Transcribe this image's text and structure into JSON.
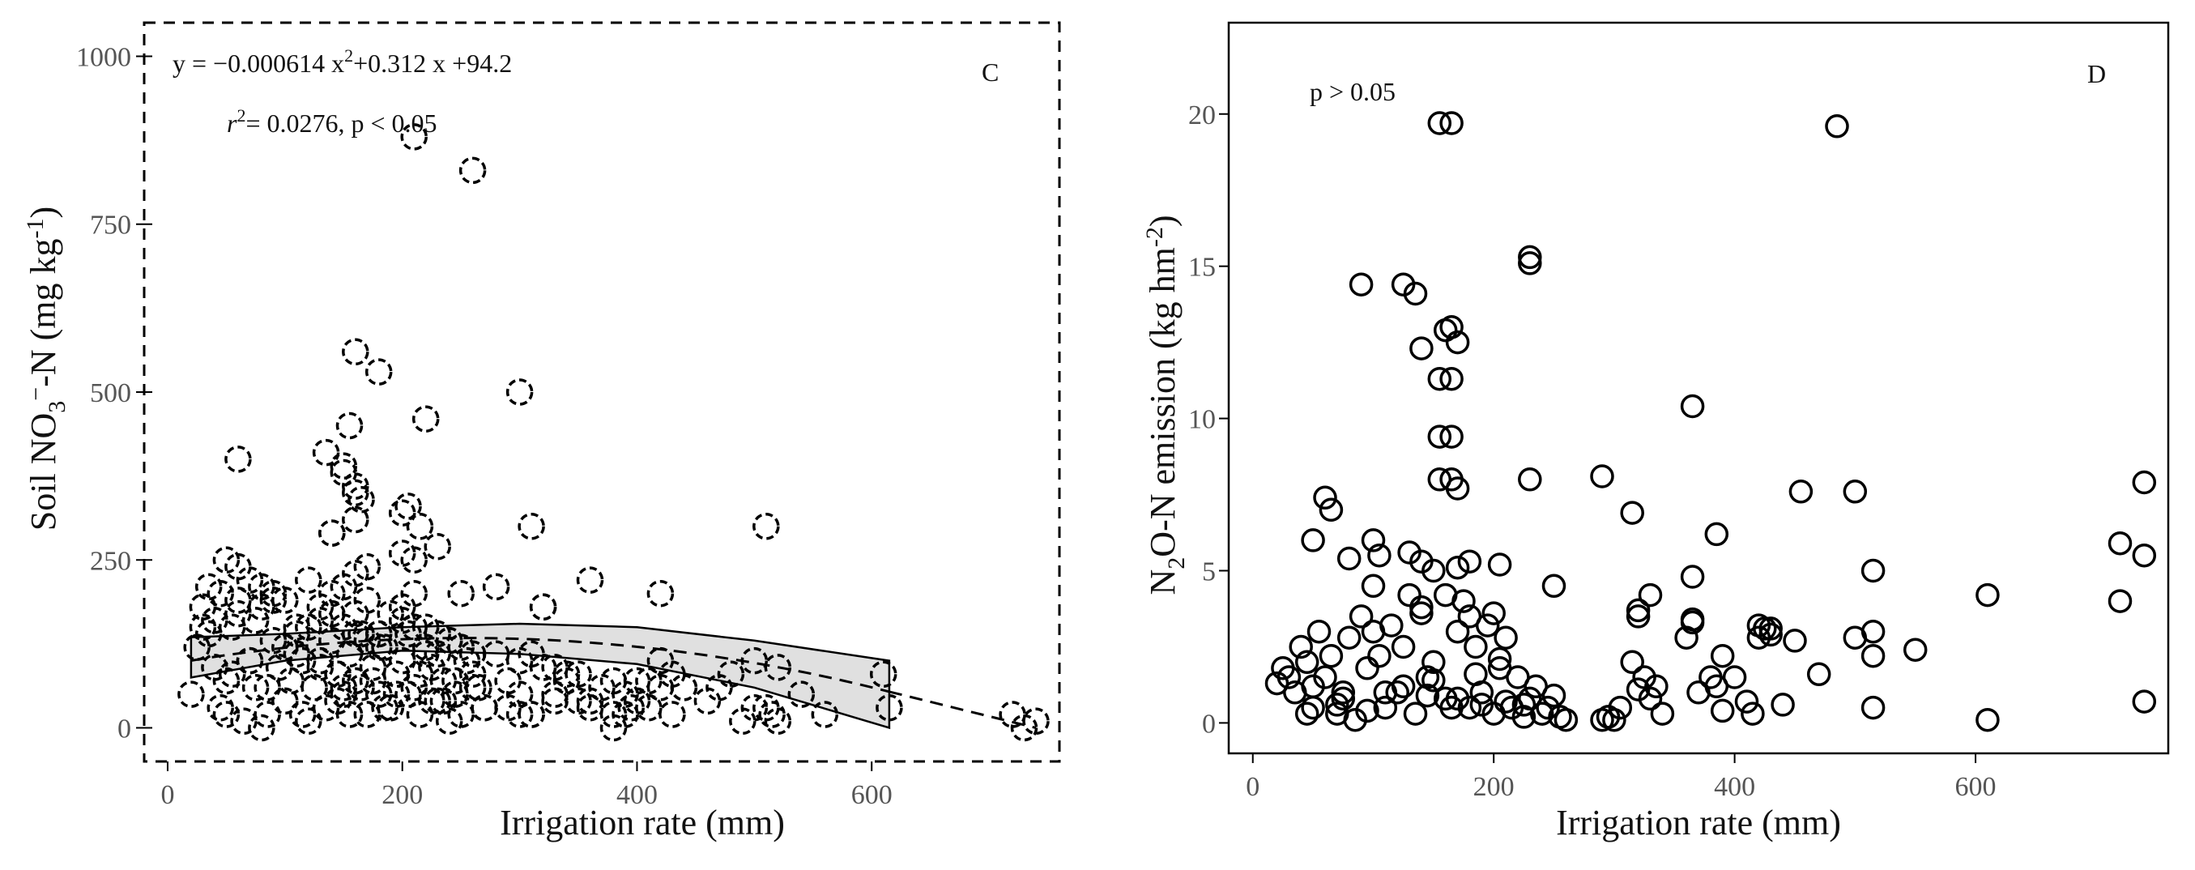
{
  "colors": {
    "stroke": "#000000",
    "band": "#e0e0e0",
    "tick_text": "#555555",
    "text": "#111111"
  },
  "chart_data": [
    {
      "panel": "C",
      "type": "scatter",
      "title": "",
      "xlabel": "Irrigation rate (mm)",
      "ylabel": {
        "main": "Soil NO",
        "sub": "3",
        "sup": "−",
        "suffix": "-N (mg kg",
        "unit_sup": "-1",
        "close": ")"
      },
      "xlim": [
        -20,
        760
      ],
      "ylim": [
        -50,
        1050
      ],
      "xticks": [
        0,
        200,
        400,
        600
      ],
      "xtick_labels": [
        "0",
        "200",
        "400",
        "600"
      ],
      "yticks": [
        0,
        250,
        500,
        750,
        1000
      ],
      "ytick_labels": [
        "0",
        "250",
        "500",
        "750",
        "1000"
      ],
      "frame_style": "dashed",
      "marker_style": "dashed-circle",
      "equation": {
        "prefix": "y = −0.000614 x",
        "sup": "2",
        "suffix": "+0.312 x +94.2"
      },
      "stats": {
        "r_symbol": "r",
        "r_sup": "2",
        "text": "= 0.0276,  p < 0.05"
      },
      "letter": "C",
      "fit": {
        "model": "quadratic",
        "coefficients": {
          "a": -0.000614,
          "b": 0.312,
          "c": 94.2
        },
        "fit_range": [
          20,
          615
        ],
        "extrapolated_range": [
          615,
          740
        ],
        "ci_band": {
          "x": [
            20,
            100,
            200,
            300,
            400,
            500,
            615
          ],
          "lower": [
            75,
            100,
            115,
            110,
            95,
            60,
            0
          ],
          "upper": [
            135,
            140,
            150,
            155,
            150,
            130,
            100
          ]
        }
      },
      "points": {
        "x": [
          20,
          25,
          30,
          35,
          40,
          45,
          50,
          55,
          60,
          65,
          70,
          75,
          80,
          85,
          90,
          95,
          100,
          105,
          110,
          115,
          120,
          125,
          130,
          135,
          140,
          145,
          150,
          155,
          160,
          165,
          170,
          175,
          180,
          185,
          190,
          195,
          200,
          205,
          210,
          215,
          220,
          225,
          230,
          235,
          240,
          245,
          250,
          255,
          260,
          265,
          270,
          280,
          290,
          300,
          310,
          320,
          330,
          340,
          360,
          370,
          380,
          390,
          400,
          410,
          420,
          430,
          440,
          460,
          480,
          500,
          510,
          515,
          520,
          540,
          560,
          610,
          615,
          720,
          740,
          45,
          60,
          75,
          90,
          110,
          130,
          140,
          150,
          160,
          170,
          180,
          200,
          210,
          220,
          230,
          60,
          80,
          100,
          120,
          140,
          160,
          180,
          200,
          220,
          240,
          260,
          300,
          320,
          340,
          400,
          420,
          50,
          70,
          90,
          110,
          130,
          150,
          160,
          170,
          190,
          210,
          230,
          250,
          310,
          330,
          350,
          380,
          440,
          510,
          135,
          150,
          155,
          160,
          165,
          180,
          205,
          215,
          220,
          300,
          310,
          60,
          140,
          150,
          160,
          170,
          200,
          210,
          230,
          250,
          280,
          320,
          40,
          70,
          100,
          130,
          150,
          175,
          195,
          215,
          235,
          260,
          290,
          330,
          360,
          390,
          410,
          470,
          500,
          35,
          55,
          85,
          115,
          145,
          165,
          185,
          205,
          225,
          245,
          270,
          310,
          350,
          395,
          430,
          490,
          30,
          50,
          80,
          120,
          155,
          190,
          240,
          300,
          380,
          520,
          730,
          140,
          160,
          200,
          210,
          260,
          320,
          360,
          420,
          160
        ],
        "y": [
          50,
          120,
          180,
          210,
          90,
          30,
          70,
          150,
          190,
          10,
          100,
          60,
          180,
          20,
          130,
          90,
          40,
          70,
          110,
          20,
          150,
          60,
          100,
          30,
          130,
          80,
          50,
          110,
          70,
          140,
          20,
          90,
          50,
          120,
          30,
          80,
          100,
          140,
          60,
          20,
          110,
          90,
          40,
          70,
          130,
          50,
          20,
          100,
          80,
          60,
          30,
          110,
          70,
          50,
          20,
          90,
          40,
          70,
          30,
          60,
          20,
          50,
          40,
          70,
          100,
          80,
          60,
          40,
          80,
          100,
          30,
          20,
          90,
          50,
          20,
          80,
          30,
          20,
          10,
          200,
          170,
          160,
          190,
          140,
          160,
          170,
          150,
          140,
          130,
          120,
          180,
          200,
          150,
          110,
          240,
          210,
          190,
          220,
          200,
          170,
          140,
          160,
          120,
          130,
          110,
          100,
          90,
          80,
          70,
          60,
          250,
          220,
          200,
          150,
          180,
          210,
          230,
          190,
          170,
          150,
          140,
          120,
          110,
          90,
          80,
          70,
          60,
          300,
          410,
          390,
          450,
          560,
          340,
          530,
          330,
          300,
          460,
          500,
          300,
          400,
          290,
          380,
          360,
          240,
          260,
          250,
          270,
          200,
          210,
          180,
          160,
          100,
          120,
          90,
          60,
          70,
          50,
          80,
          40,
          60,
          30,
          50,
          40,
          20,
          30,
          60,
          30,
          140,
          80,
          60,
          100,
          40,
          60,
          30,
          50,
          40,
          70,
          30,
          20,
          40,
          30,
          20,
          10,
          150,
          20,
          0,
          10,
          20,
          30,
          10,
          20,
          0,
          10,
          0,
          290,
          310,
          320,
          880,
          830,
          180,
          220,
          200,
          350
        ]
      }
    },
    {
      "panel": "D",
      "type": "scatter",
      "title": "",
      "xlabel": "Irrigation rate (mm)",
      "ylabel": {
        "main": "N",
        "sub": "2",
        "suffix": "O-N emission (kg hm",
        "unit_sup": "-2",
        "close": ")"
      },
      "xlim": [
        -20,
        760
      ],
      "ylim": [
        -1,
        23
      ],
      "xticks": [
        0,
        200,
        400,
        600
      ],
      "xtick_labels": [
        "0",
        "200",
        "400",
        "600"
      ],
      "yticks": [
        0,
        5,
        10,
        15,
        20
      ],
      "ytick_labels": [
        "0",
        "5",
        "10",
        "15",
        "20"
      ],
      "frame_style": "solid",
      "marker_style": "open-circle",
      "stats_text": "p > 0.05",
      "letter": "D",
      "points": {
        "x": [
          155,
          165,
          485,
          90,
          125,
          135,
          165,
          160,
          170,
          140,
          230,
          230,
          155,
          165,
          155,
          165,
          155,
          165,
          170,
          230,
          290,
          315,
          365,
          385,
          455,
          500,
          740,
          720,
          740,
          60,
          65,
          50,
          80,
          100,
          105,
          130,
          140,
          150,
          170,
          180,
          205,
          250,
          365,
          515,
          25,
          30,
          35,
          40,
          45,
          50,
          55,
          60,
          65,
          70,
          75,
          80,
          85,
          90,
          95,
          100,
          105,
          110,
          115,
          120,
          125,
          130,
          135,
          140,
          145,
          150,
          160,
          170,
          175,
          180,
          185,
          190,
          195,
          200,
          205,
          210,
          215,
          220,
          225,
          230,
          235,
          240,
          245,
          250,
          255,
          260,
          290,
          295,
          305,
          315,
          320,
          325,
          330,
          335,
          360,
          365,
          370,
          385,
          390,
          400,
          410,
          415,
          420,
          425,
          430,
          450,
          470,
          500,
          515,
          550,
          610,
          720,
          740,
          100,
          140,
          160,
          180,
          200,
          320,
          330,
          365,
          420,
          430,
          515,
          50,
          70,
          110,
          150,
          170,
          190,
          210,
          320,
          380,
          20,
          45,
          75,
          95,
          125,
          145,
          165,
          185,
          205,
          225,
          300,
          340,
          390,
          440,
          515,
          610
        ],
        "y": [
          19.7,
          19.7,
          19.6,
          14.4,
          14.4,
          14.1,
          13.0,
          12.9,
          12.5,
          12.3,
          15.3,
          15.1,
          11.3,
          11.3,
          9.4,
          9.4,
          8.0,
          8.0,
          7.7,
          8.0,
          8.1,
          6.9,
          10.4,
          6.2,
          7.6,
          7.6,
          7.9,
          5.9,
          5.5,
          7.4,
          7.0,
          6.0,
          5.4,
          6.0,
          5.5,
          5.6,
          5.3,
          5.0,
          5.1,
          5.3,
          5.2,
          4.5,
          4.8,
          5.0,
          1.8,
          1.5,
          1.0,
          2.5,
          2.0,
          0.5,
          3.0,
          1.5,
          2.2,
          0.3,
          1.0,
          2.8,
          0.1,
          3.5,
          1.8,
          4.5,
          2.2,
          0.5,
          3.2,
          1.0,
          2.5,
          4.2,
          0.3,
          3.8,
          1.5,
          2.0,
          0.8,
          3.0,
          4.0,
          0.5,
          2.5,
          1.0,
          3.2,
          0.3,
          1.8,
          2.8,
          0.5,
          1.5,
          0.2,
          0.8,
          1.2,
          0.3,
          0.5,
          0.9,
          0.2,
          0.1,
          0.1,
          0.2,
          0.5,
          2.0,
          3.5,
          1.5,
          0.8,
          1.2,
          2.8,
          3.4,
          1.0,
          1.2,
          2.2,
          1.5,
          0.7,
          0.3,
          2.8,
          3.1,
          2.9,
          2.7,
          1.6,
          2.8,
          2.2,
          2.4,
          4.2,
          4.0,
          0.7,
          3.0,
          3.6,
          4.2,
          3.5,
          3.6,
          3.7,
          4.2,
          3.3,
          3.2,
          3.1,
          3.0,
          1.2,
          0.6,
          1.0,
          1.4,
          0.8,
          0.6,
          0.7,
          1.1,
          1.5,
          1.3,
          0.3,
          0.8,
          0.4,
          1.2,
          0.9,
          0.5,
          1.6,
          2.1,
          0.6,
          0.1,
          0.3,
          0.4,
          0.6,
          0.5,
          0.1
        ]
      }
    }
  ]
}
